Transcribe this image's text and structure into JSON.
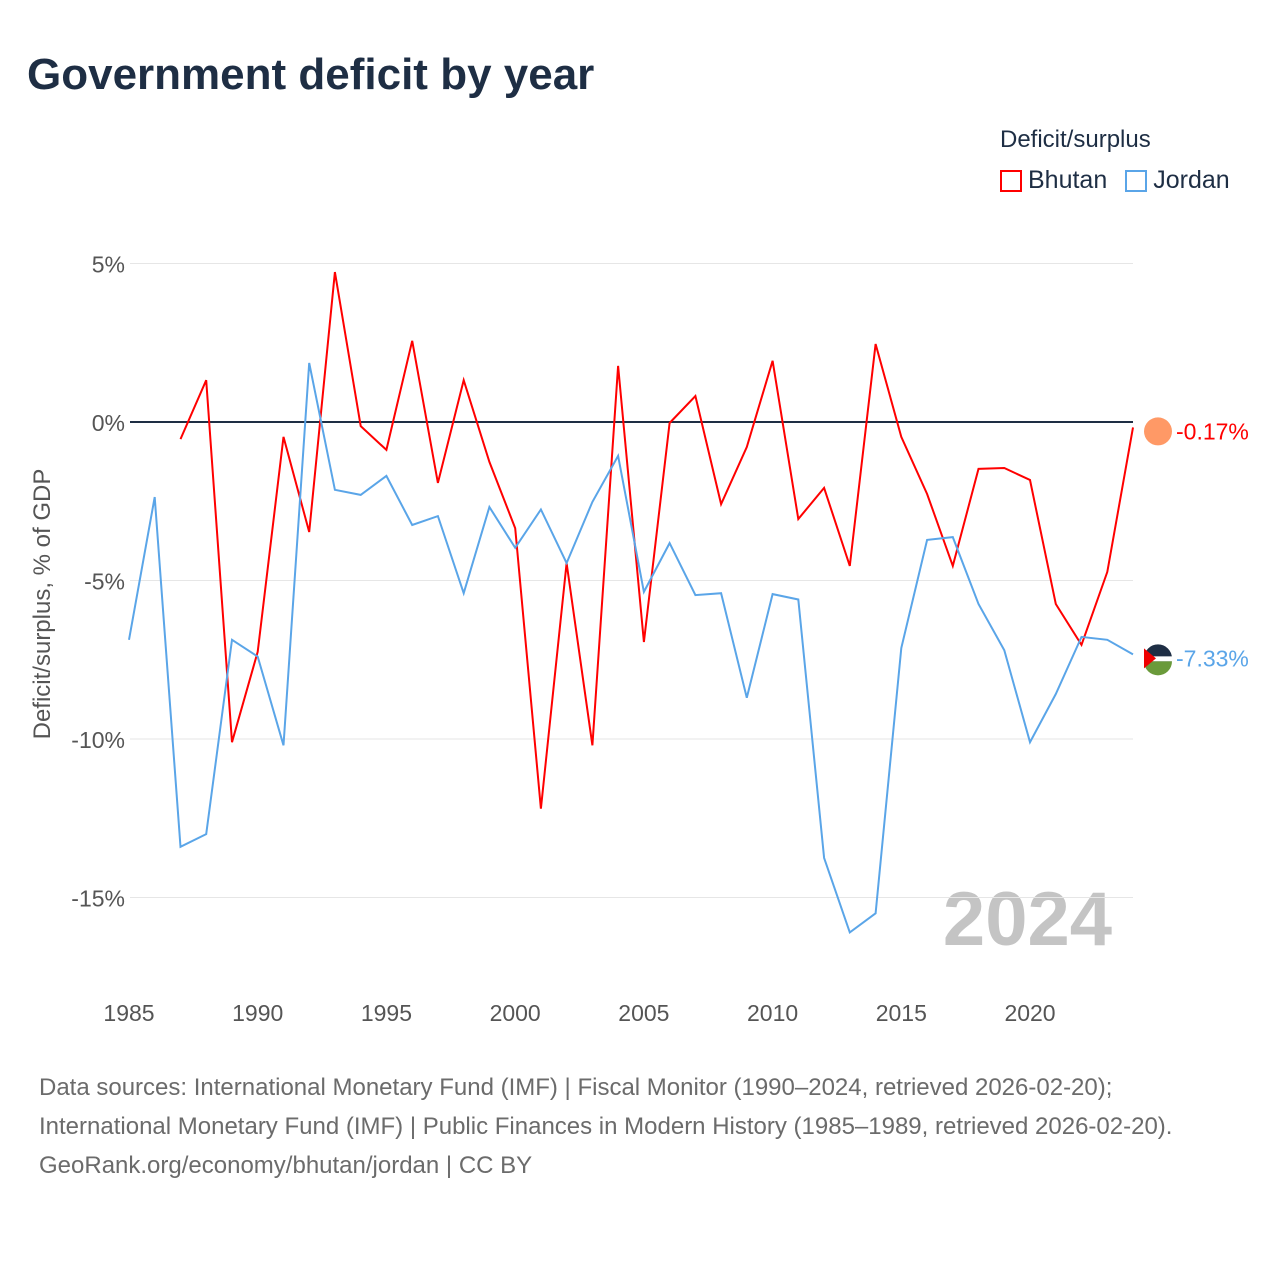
{
  "title": "Government deficit by year",
  "legend": {
    "title": "Deficit/surplus",
    "items": [
      {
        "label": "Bhutan",
        "color": "#ff0000"
      },
      {
        "label": "Jordan",
        "color": "#5aa5e8"
      }
    ]
  },
  "year_watermark": "2024",
  "footer": {
    "sources": "Data sources: International Monetary Fund (IMF) | Fiscal Monitor (1990–2024, retrieved 2026-02-20); International Monetary Fund (IMF) | Public Finances in Modern History (1985–1989, retrieved 2026-02-20).",
    "credit": "GeoRank.org/economy/bhutan/jordan | CC BY"
  },
  "chart_data": {
    "type": "line",
    "title": "Government deficit by year",
    "xlabel": "",
    "ylabel": "Deficit/surplus, % of GDP",
    "xlim": [
      1985,
      2024
    ],
    "ylim": [
      -17,
      5.5
    ],
    "xticks": [
      1985,
      1990,
      1995,
      2000,
      2005,
      2010,
      2015,
      2020
    ],
    "yticks": [
      {
        "v": 5,
        "label": "5%"
      },
      {
        "v": 0,
        "label": "0%"
      },
      {
        "v": -5,
        "label": "-5%"
      },
      {
        "v": -10,
        "label": "-10%"
      },
      {
        "v": -15,
        "label": "-15%"
      }
    ],
    "series": [
      {
        "name": "Bhutan",
        "color": "#ff0000",
        "end_label": "-0.17%",
        "start_year": 1987,
        "values": [
          -0.54,
          1.32,
          -10.1,
          -7.25,
          -0.47,
          -3.47,
          4.73,
          -0.13,
          -0.88,
          2.56,
          -1.92,
          1.32,
          -1.26,
          -3.35,
          -12.2,
          -4.45,
          -10.2,
          1.77,
          -6.94,
          -0.03,
          0.82,
          -2.59,
          -0.79,
          1.93,
          -3.06,
          -2.08,
          -4.54,
          2.46,
          -0.47,
          -2.27,
          -4.54,
          -1.48,
          -1.45,
          -1.83,
          -5.74,
          -7.03,
          -4.73,
          -0.17
        ]
      },
      {
        "name": "Jordan",
        "color": "#5aa5e8",
        "end_label": "-7.33%",
        "start_year": 1985,
        "values": [
          -6.87,
          -2.37,
          -13.4,
          -13.0,
          -6.87,
          -7.4,
          -10.2,
          1.86,
          -2.14,
          -2.3,
          -1.7,
          -3.25,
          -2.97,
          -5.4,
          -2.68,
          -3.97,
          -2.76,
          -4.45,
          -2.52,
          -1.07,
          -5.36,
          -3.82,
          -5.46,
          -5.4,
          -8.7,
          -5.43,
          -5.6,
          -13.75,
          -16.1,
          -15.5,
          -7.13,
          -3.72,
          -3.63,
          -5.74,
          -7.2,
          -10.1,
          -8.58,
          -6.78,
          -6.87,
          -7.33
        ]
      }
    ]
  }
}
